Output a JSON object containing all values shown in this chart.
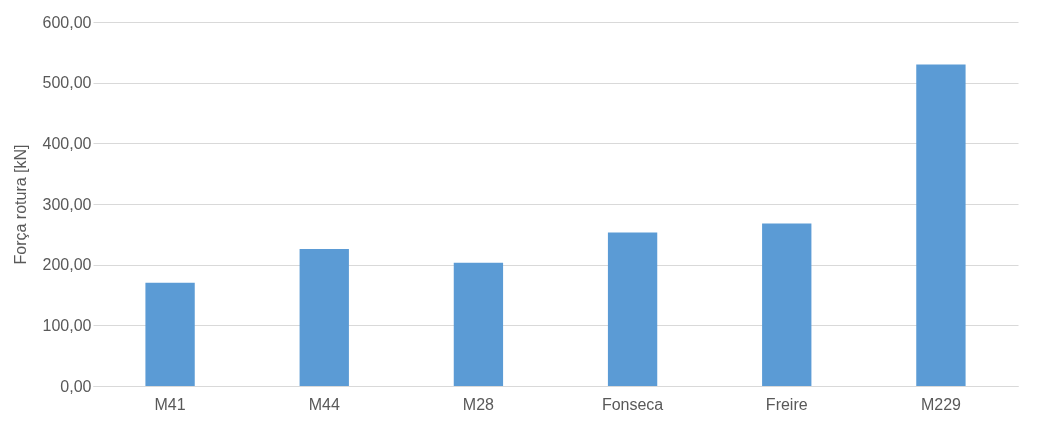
{
  "chart_data": {
    "type": "bar",
    "ylabel": "Força rotura [kN]",
    "categories": [
      "M41",
      "M44",
      "M28",
      "Fonseca",
      "Freire",
      "M229"
    ],
    "series": [
      {
        "color": "#5b9bd5",
        "values": [
          170,
          226,
          203,
          253,
          268,
          530
        ]
      }
    ],
    "ylim": [
      0,
      600
    ],
    "yticks": [
      {
        "value": 0,
        "label": "0,00"
      },
      {
        "value": 100,
        "label": "100,00"
      },
      {
        "value": 200,
        "label": "200,00"
      },
      {
        "value": 300,
        "label": "300,00"
      },
      {
        "value": 400,
        "label": "400,00"
      },
      {
        "value": 500,
        "label": "500,00"
      },
      {
        "value": 600,
        "label": "600,00"
      }
    ],
    "grid": "y",
    "legend": false
  }
}
